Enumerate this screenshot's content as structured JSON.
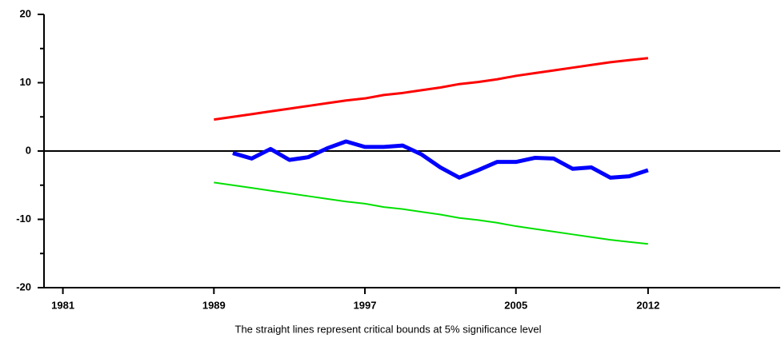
{
  "chart_data": {
    "type": "line",
    "x": [
      1989,
      1990,
      1991,
      1992,
      1993,
      1994,
      1995,
      1996,
      1997,
      1998,
      1999,
      2000,
      2001,
      2002,
      2003,
      2004,
      2005,
      2006,
      2007,
      2008,
      2009,
      2010,
      2011,
      2012
    ],
    "series": [
      {
        "color": "#ff0000",
        "width": 3,
        "values": [
          4.6,
          5.0,
          5.4,
          5.8,
          6.2,
          6.6,
          7.0,
          7.4,
          7.7,
          8.2,
          8.5,
          8.9,
          9.3,
          9.8,
          10.1,
          10.5,
          11.0,
          11.4,
          11.8,
          12.2,
          12.6,
          13.0,
          13.3,
          13.6
        ]
      },
      {
        "color": "#0000ff",
        "width": 5,
        "values": [
          null,
          -0.3,
          -1.1,
          0.3,
          -1.3,
          -0.9,
          0.4,
          1.4,
          0.6,
          0.6,
          0.8,
          -0.5,
          -2.4,
          -3.9,
          -2.8,
          -1.6,
          -1.6,
          -1.0,
          -1.1,
          -2.6,
          -2.4,
          -3.9,
          -3.7,
          -2.8
        ]
      },
      {
        "color": "#00e000",
        "width": 2,
        "values": [
          -4.6,
          -5.0,
          -5.4,
          -5.8,
          -6.2,
          -6.6,
          -7.0,
          -7.4,
          -7.7,
          -8.2,
          -8.5,
          -8.9,
          -9.3,
          -9.8,
          -10.1,
          -10.5,
          -11.0,
          -11.4,
          -11.8,
          -12.2,
          -12.6,
          -13.0,
          -13.3,
          -13.6
        ]
      }
    ],
    "xlim": [
      1980,
      2019
    ],
    "xticks": [
      1981,
      1989,
      1997,
      2005,
      2012
    ],
    "ylim": [
      -20,
      20
    ],
    "yticks": [
      -20,
      -10,
      0,
      10,
      20
    ],
    "yminorticks": [
      -15,
      -5,
      5,
      15
    ],
    "zero_line": true,
    "annotation": "The straight lines represent critical bounds at 5% significance level"
  }
}
